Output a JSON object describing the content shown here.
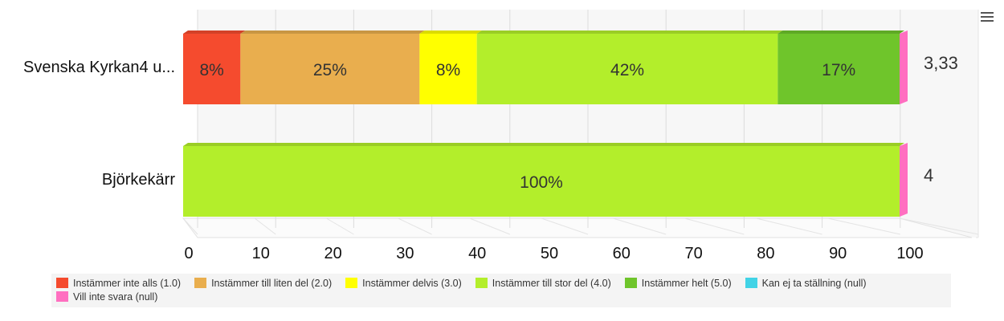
{
  "chart_data": {
    "type": "bar",
    "orientation": "horizontal",
    "stacked": "percent",
    "categories": [
      "Svenska Kyrkan4 u...",
      "Björkekärr"
    ],
    "averages": [
      "3,33",
      "4"
    ],
    "xlim": [
      0,
      100
    ],
    "xticks": [
      0,
      10,
      20,
      30,
      40,
      50,
      60,
      70,
      80,
      90,
      100
    ],
    "grid": true,
    "legend_position": "bottom",
    "series": [
      {
        "name": "Instämmer inte alls (1.0)",
        "color": "#f54b2e",
        "values": [
          8,
          0
        ],
        "labels": [
          "8%",
          ""
        ]
      },
      {
        "name": "Instämmer till liten del (2.0)",
        "color": "#e9ae4e",
        "values": [
          25,
          0
        ],
        "labels": [
          "25%",
          ""
        ]
      },
      {
        "name": "Instämmer delvis (3.0)",
        "color": "#ffff00",
        "values": [
          8,
          0
        ],
        "labels": [
          "8%",
          ""
        ]
      },
      {
        "name": "Instämmer till stor del (4.0)",
        "color": "#b3ee2b",
        "values": [
          42,
          100
        ],
        "labels": [
          "42%",
          "100%"
        ]
      },
      {
        "name": "Instämmer helt (5.0)",
        "color": "#6fc52b",
        "values": [
          17,
          0
        ],
        "labels": [
          "17%",
          ""
        ]
      },
      {
        "name": "Kan ej ta ställning (null)",
        "color": "#41d3e6",
        "values": [
          0,
          0
        ],
        "labels": [
          "",
          ""
        ]
      },
      {
        "name": "Vill inte svara (null)",
        "color": "#ff6fc0",
        "values": [
          0,
          0
        ],
        "labels": [
          "",
          ""
        ]
      }
    ]
  }
}
